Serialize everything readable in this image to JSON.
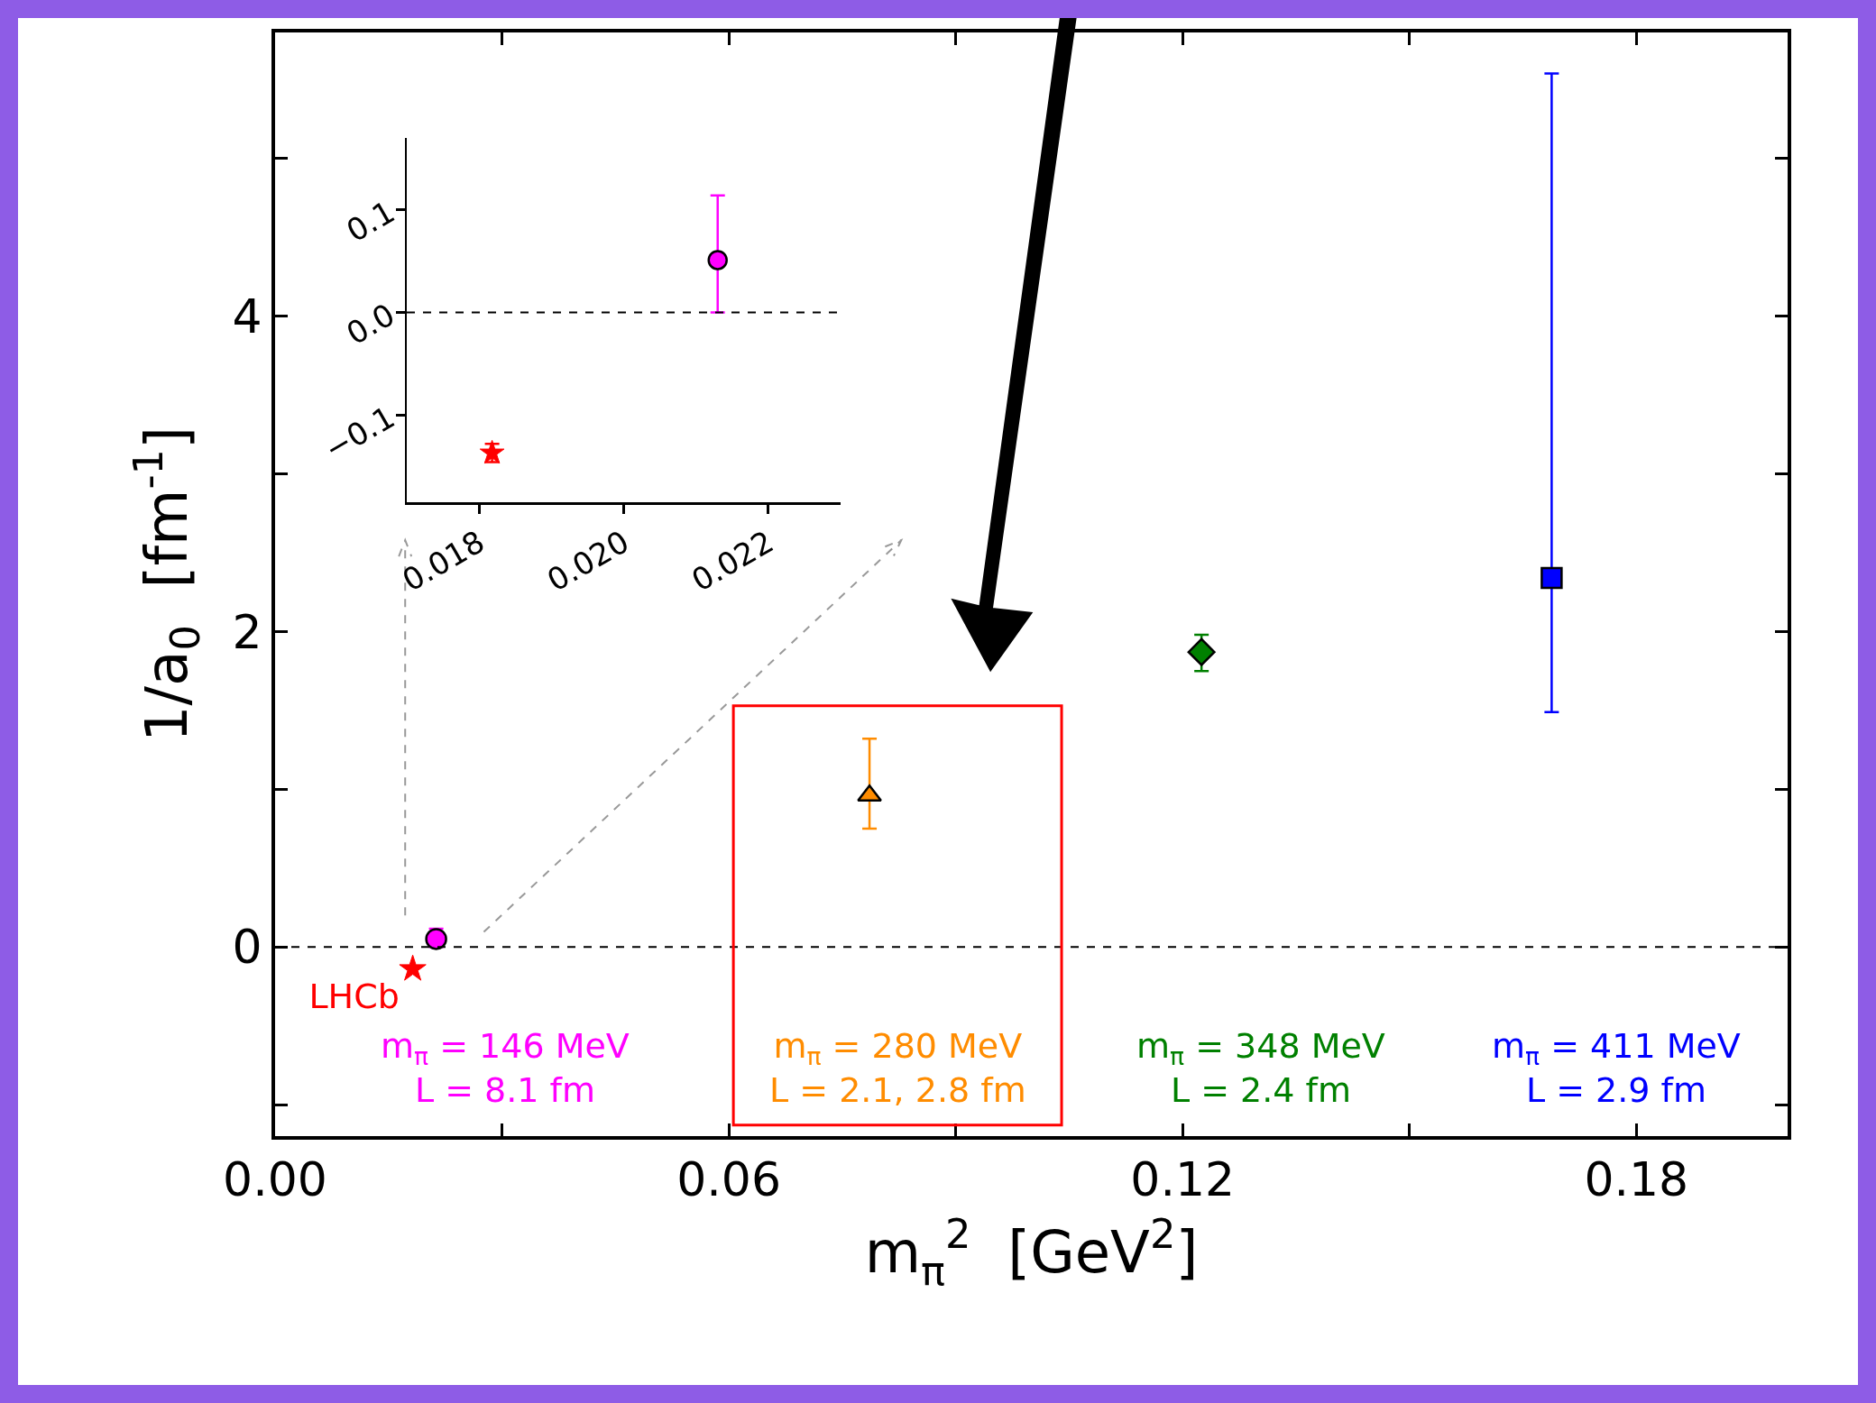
{
  "chart_data": [
    {
      "type": "scatter",
      "xlabel": "m$_{π}$$^{2}$  [GeV$^{2}$]",
      "ylabel": "1/a$_{0}$  [fm$^{-1}$]",
      "xlim": [
        0,
        0.2
      ],
      "ylim": [
        -1.2,
        5.8
      ],
      "xticks": [
        {
          "value": 0,
          "label": "0.00"
        },
        {
          "value": 0.03,
          "label": null
        },
        0.06,
        {
          "value": 0.09,
          "label": null
        },
        0.12,
        {
          "value": 0.15,
          "label": null
        },
        0.18
      ],
      "yticks": [
        {
          "value": -1,
          "label": null
        },
        0,
        {
          "value": 1,
          "label": null
        },
        2,
        {
          "value": 3,
          "label": null
        },
        4,
        {
          "value": 5,
          "label": null
        }
      ],
      "grid": false,
      "legend": false,
      "ref_lines": [
        {
          "axis": "y",
          "value": 0,
          "label": null,
          "color": "#000000",
          "line_style": "dashed"
        }
      ],
      "series": [
        {
          "name": "LHCb",
          "color": "#ff0000",
          "marker": "star",
          "x": [
            0.0182
          ],
          "values": [
            -0.14
          ]
        },
        {
          "color": "#ff00ff",
          "marker": "circle",
          "x": [
            0.0213
          ],
          "values": [
            0.05
          ],
          "errors": [
            [
              0.0,
              0.115
            ]
          ]
        },
        {
          "color": "#ff8c00",
          "marker": "triangle",
          "x": [
            0.0786
          ],
          "values": [
            0.96
          ],
          "errors": [
            [
              0.75,
              1.32
            ]
          ]
        },
        {
          "color": "#008000",
          "marker": "diamond",
          "x": [
            0.1225
          ],
          "values": [
            1.87
          ],
          "errors": [
            [
              1.75,
              1.98
            ]
          ]
        },
        {
          "color": "#0000ff",
          "marker": "square",
          "x": [
            0.1688
          ],
          "values": [
            2.34
          ],
          "errors": [
            [
              1.49,
              5.54
            ]
          ]
        }
      ],
      "annotations": [
        "m$_{π}$ = 146 MeV\nL = 8.1 fm",
        "m$_{π}$ = 280 MeV\nL = 2.1, 2.8 fm",
        "m$_{π}$ = 348 MeV\nL = 2.4 fm",
        "m$_{π}$ = 411 MeV\nL = 2.9 fm"
      ]
    },
    {
      "type": "scatter",
      "xlim": [
        0.017,
        0.023
      ],
      "ylim": [
        -0.185,
        0.17
      ],
      "xticks": [
        0.018,
        {
          "value": 0.02,
          "label": "0.020"
        },
        0.022
      ],
      "yticks": [
        {
          "value": -0.1,
          "label": "−0.1"
        },
        {
          "value": 0,
          "label": "0.0"
        },
        0.1
      ],
      "grid": false,
      "legend": false,
      "ref_lines": [
        {
          "axis": "y",
          "value": 0,
          "label": null,
          "color": "#000000",
          "line_style": "dashed"
        }
      ],
      "series": [
        {
          "color": "#ff0000",
          "marker": "star",
          "x": [
            0.01818
          ],
          "values": [
            -0.137
          ],
          "errors": [
            [
              -0.146,
              -0.128
            ]
          ]
        },
        {
          "color": "#ff00ff",
          "marker": "circle",
          "x": [
            0.0213
          ],
          "values": [
            0.051
          ],
          "errors": [
            [
              0.0,
              0.114
            ]
          ]
        }
      ]
    }
  ]
}
